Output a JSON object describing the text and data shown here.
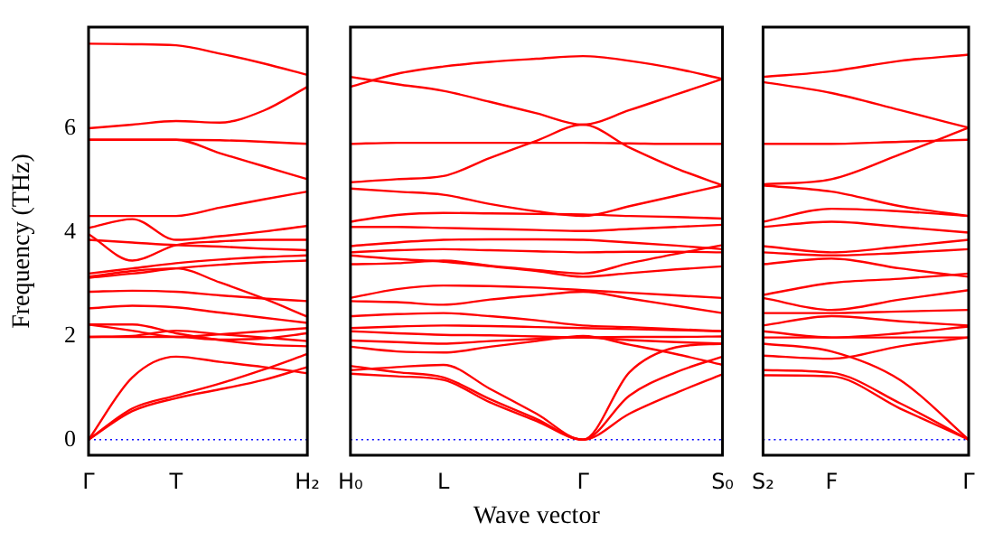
{
  "chart_data": [
    {
      "type": "line",
      "ylabel": "Frequency (THz)",
      "categories": [
        "Γ",
        null,
        "T",
        null,
        null,
        "H₂"
      ],
      "ylim": [
        -0.3,
        7.95
      ],
      "yticks": [
        0,
        2,
        4,
        6
      ],
      "grid": false,
      "legend": false,
      "marker": "none",
      "line_style": "solid",
      "ref_lines": [
        {
          "axis": "y",
          "value": 0,
          "color": "#0000ff",
          "line_style": "dotted"
        }
      ],
      "series": [
        {
          "color": "#ff0000",
          "values": [
            7.63,
            7.62,
            7.6,
            7.44,
            7.25,
            7.03
          ]
        },
        {
          "color": "#ff0000",
          "values": [
            6.0,
            6.07,
            6.14,
            6.11,
            6.34,
            6.8
          ]
        },
        {
          "color": "#ff0000",
          "values": [
            5.78,
            5.78,
            5.78,
            5.77,
            5.74,
            5.7
          ]
        },
        {
          "color": "#ff0000",
          "values": [
            5.78,
            5.78,
            5.78,
            5.52,
            5.27,
            5.02
          ]
        },
        {
          "color": "#ff0000",
          "values": [
            4.31,
            4.31,
            4.31,
            4.47,
            4.63,
            4.78
          ]
        },
        {
          "color": "#ff0000",
          "values": [
            4.08,
            4.25,
            3.85,
            3.92,
            4.01,
            4.12
          ]
        },
        {
          "color": "#ff0000",
          "values": [
            3.96,
            3.45,
            3.75,
            3.82,
            3.85,
            3.85
          ]
        },
        {
          "color": "#ff0000",
          "values": [
            3.85,
            3.8,
            3.75,
            3.72,
            3.68,
            3.65
          ]
        },
        {
          "color": "#ff0000",
          "values": [
            3.2,
            3.3,
            3.4,
            3.47,
            3.52,
            3.55
          ]
        },
        {
          "color": "#ff0000",
          "values": [
            3.12,
            3.2,
            3.3,
            3.37,
            3.42,
            3.45
          ]
        },
        {
          "color": "#ff0000",
          "values": [
            2.85,
            2.87,
            2.85,
            2.78,
            2.72,
            2.67
          ]
        },
        {
          "color": "#ff0000",
          "values": [
            3.14,
            3.25,
            3.3,
            3.03,
            2.72,
            2.37
          ]
        },
        {
          "color": "#ff0000",
          "values": [
            2.53,
            2.58,
            2.55,
            2.45,
            2.35,
            2.25
          ]
        },
        {
          "color": "#ff0000",
          "values": [
            2.22,
            2.1,
            1.98,
            2.03,
            2.09,
            2.15
          ]
        },
        {
          "color": "#ff0000",
          "values": [
            1.98,
            1.98,
            1.98,
            1.93,
            1.95,
            2.05
          ]
        },
        {
          "color": "#ff0000",
          "values": [
            2.22,
            2.22,
            2.05,
            1.92,
            1.83,
            1.8
          ]
        },
        {
          "color": "#ff0000",
          "values": [
            1.98,
            2.0,
            2.1,
            2.03,
            1.97,
            1.9
          ]
        },
        {
          "color": "#ff0000",
          "values": [
            0,
            1.2,
            1.6,
            1.5,
            1.4,
            1.28
          ]
        },
        {
          "color": "#ff0000",
          "values": [
            0,
            0.6,
            0.85,
            1.08,
            1.35,
            1.65
          ]
        },
        {
          "color": "#ff0000",
          "values": [
            0,
            0.55,
            0.8,
            0.97,
            1.15,
            1.4
          ]
        }
      ]
    },
    {
      "type": "line",
      "xlabel": "Wave vector",
      "tick_labels": "x",
      "categories": [
        "H₀",
        null,
        "L",
        null,
        null,
        "Γ",
        null,
        null,
        "S₀"
      ],
      "ylim": [
        -0.3,
        7.95
      ],
      "yticks": [
        0,
        2,
        4,
        6
      ],
      "grid": false,
      "legend": false,
      "marker": "none",
      "line_style": "solid",
      "ref_lines": [
        {
          "axis": "y",
          "value": 0,
          "color": "#0000ff",
          "line_style": "dotted"
        }
      ],
      "series": [
        {
          "color": "#ff0000",
          "values": [
            6.8,
            7.05,
            7.19,
            7.28,
            7.34,
            7.39,
            7.3,
            7.15,
            6.95
          ]
        },
        {
          "color": "#ff0000",
          "values": [
            6.99,
            6.85,
            6.72,
            6.51,
            6.29,
            6.07,
            6.35,
            6.65,
            6.95
          ]
        },
        {
          "color": "#ff0000",
          "values": [
            5.7,
            5.72,
            5.72,
            5.72,
            5.72,
            5.72,
            5.71,
            5.7,
            5.7
          ]
        },
        {
          "color": "#ff0000",
          "values": [
            4.96,
            5.02,
            5.08,
            5.43,
            5.76,
            6.07,
            5.63,
            5.23,
            4.9
          ]
        },
        {
          "color": "#ff0000",
          "values": [
            4.84,
            4.78,
            4.72,
            4.54,
            4.4,
            4.31,
            4.5,
            4.7,
            4.9
          ]
        },
        {
          "color": "#ff0000",
          "values": [
            4.2,
            4.33,
            4.37,
            4.36,
            4.35,
            4.34,
            4.31,
            4.29,
            4.26
          ]
        },
        {
          "color": "#ff0000",
          "values": [
            4.1,
            4.1,
            4.08,
            4.06,
            4.04,
            4.02,
            4.06,
            4.1,
            4.14
          ]
        },
        {
          "color": "#ff0000",
          "values": [
            3.73,
            3.8,
            3.85,
            3.86,
            3.86,
            3.85,
            3.8,
            3.74,
            3.67
          ]
        },
        {
          "color": "#ff0000",
          "values": [
            3.61,
            3.65,
            3.67,
            3.65,
            3.63,
            3.61,
            3.62,
            3.62,
            3.61
          ]
        },
        {
          "color": "#ff0000",
          "values": [
            3.55,
            3.48,
            3.43,
            3.34,
            3.25,
            3.14,
            3.21,
            3.28,
            3.34
          ]
        },
        {
          "color": "#ff0000",
          "values": [
            3.38,
            3.4,
            3.45,
            3.35,
            3.27,
            3.2,
            3.4,
            3.58,
            3.75
          ]
        },
        {
          "color": "#ff0000",
          "values": [
            2.73,
            2.9,
            2.97,
            2.96,
            2.93,
            2.88,
            2.83,
            2.78,
            2.73
          ]
        },
        {
          "color": "#ff0000",
          "values": [
            2.67,
            2.65,
            2.6,
            2.7,
            2.78,
            2.85,
            2.72,
            2.58,
            2.44
          ]
        },
        {
          "color": "#ff0000",
          "values": [
            2.38,
            2.42,
            2.44,
            2.38,
            2.3,
            2.2,
            2.17,
            2.13,
            2.09
          ]
        },
        {
          "color": "#ff0000",
          "values": [
            2.15,
            2.18,
            2.2,
            2.19,
            2.17,
            2.15,
            2.13,
            2.11,
            2.09
          ]
        },
        {
          "color": "#ff0000",
          "values": [
            2.09,
            2.05,
            2.02,
            2.01,
            1.99,
            1.97,
            1.98,
            1.98,
            1.99
          ]
        },
        {
          "color": "#ff0000",
          "values": [
            1.91,
            1.88,
            1.85,
            1.9,
            1.94,
            1.97,
            1.92,
            1.88,
            1.85
          ]
        },
        {
          "color": "#ff0000",
          "values": [
            1.79,
            1.7,
            1.68,
            1.79,
            1.9,
            2.0,
            1.83,
            1.65,
            1.44
          ]
        },
        {
          "color": "#ff0000",
          "values": [
            1.34,
            1.4,
            1.44,
            0.98,
            0.5,
            0,
            1.3,
            1.78,
            1.85
          ]
        },
        {
          "color": "#ff0000",
          "values": [
            1.42,
            1.3,
            1.2,
            0.78,
            0.4,
            0,
            0.85,
            1.3,
            1.6
          ]
        },
        {
          "color": "#ff0000",
          "values": [
            1.27,
            1.22,
            1.15,
            0.72,
            0.36,
            0,
            0.5,
            0.9,
            1.26
          ]
        }
      ]
    },
    {
      "type": "line",
      "tick_labels": "x",
      "categories": [
        "S₂",
        "F",
        null,
        "Γ"
      ],
      "ylim": [
        -0.3,
        7.95
      ],
      "yticks": [
        0,
        2,
        4,
        6
      ],
      "grid": false,
      "legend": false,
      "marker": "none",
      "line_style": "solid",
      "ref_lines": [
        {
          "axis": "y",
          "value": 0,
          "color": "#0000ff",
          "line_style": "dotted"
        }
      ],
      "series": [
        {
          "color": "#ff0000",
          "values": [
            6.99,
            7.1,
            7.3,
            7.42
          ]
        },
        {
          "color": "#ff0000",
          "values": [
            6.89,
            6.68,
            6.35,
            6.01
          ]
        },
        {
          "color": "#ff0000",
          "values": [
            5.7,
            5.7,
            5.74,
            5.78
          ]
        },
        {
          "color": "#ff0000",
          "values": [
            4.92,
            5.02,
            5.5,
            6.01
          ]
        },
        {
          "color": "#ff0000",
          "values": [
            4.9,
            4.78,
            4.5,
            4.31
          ]
        },
        {
          "color": "#ff0000",
          "values": [
            4.2,
            4.45,
            4.4,
            4.31
          ]
        },
        {
          "color": "#ff0000",
          "values": [
            4.1,
            4.2,
            4.1,
            3.99
          ]
        },
        {
          "color": "#ff0000",
          "values": [
            3.73,
            3.61,
            3.72,
            3.85
          ]
        },
        {
          "color": "#ff0000",
          "values": [
            3.61,
            3.55,
            3.6,
            3.67
          ]
        },
        {
          "color": "#ff0000",
          "values": [
            3.38,
            3.49,
            3.3,
            3.14
          ]
        },
        {
          "color": "#ff0000",
          "values": [
            2.79,
            3.02,
            3.1,
            3.2
          ]
        },
        {
          "color": "#ff0000",
          "values": [
            2.73,
            2.5,
            2.7,
            2.88
          ]
        },
        {
          "color": "#ff0000",
          "values": [
            2.44,
            2.44,
            2.47,
            2.5
          ]
        },
        {
          "color": "#ff0000",
          "values": [
            2.2,
            2.38,
            2.28,
            2.2
          ]
        },
        {
          "color": "#ff0000",
          "values": [
            2.09,
            1.97,
            2.05,
            2.18
          ]
        },
        {
          "color": "#ff0000",
          "values": [
            1.97,
            1.97,
            1.97,
            1.97
          ]
        },
        {
          "color": "#ff0000",
          "values": [
            1.85,
            1.7,
            1.15,
            0
          ]
        },
        {
          "color": "#ff0000",
          "values": [
            1.62,
            1.56,
            1.8,
            1.97
          ]
        },
        {
          "color": "#ff0000",
          "values": [
            1.34,
            1.29,
            0.7,
            0
          ]
        },
        {
          "color": "#ff0000",
          "values": [
            1.24,
            1.22,
            0.6,
            0
          ]
        }
      ]
    }
  ]
}
